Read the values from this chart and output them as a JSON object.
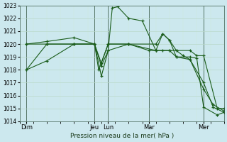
{
  "xlabel": "Pression niveau de la mer( hPa )",
  "ylim": [
    1014,
    1023
  ],
  "yticks": [
    1014,
    1015,
    1016,
    1017,
    1018,
    1019,
    1020,
    1021,
    1022,
    1023
  ],
  "bg_color": "#cce8ee",
  "line_color": "#1a5c1a",
  "grid_major_color": "#b8d8c8",
  "grid_minor_color": "#d0e8d8",
  "xtick_labels": [
    "Dim",
    "Jeu",
    "Lun",
    "Mar",
    "Mer"
  ],
  "xtick_positions": [
    0,
    5,
    6,
    9,
    13
  ],
  "xlim": [
    -0.5,
    14.5
  ],
  "series": [
    {
      "x": [
        0,
        1.5,
        3.5,
        5,
        5.5,
        6,
        6.3,
        6.7,
        7.5,
        8.5,
        9.5,
        10,
        10.5,
        11,
        12,
        13,
        13.7,
        14.5
      ],
      "y": [
        1018.0,
        1018.7,
        1020.0,
        1020.0,
        1017.5,
        1019.5,
        1022.8,
        1022.9,
        1022.0,
        1021.8,
        1019.5,
        1020.8,
        1020.3,
        1019.0,
        1018.8,
        1017.0,
        1015.1,
        1014.7
      ]
    },
    {
      "x": [
        0,
        1.5,
        3.5,
        5,
        5.5,
        6,
        7.5,
        9.5,
        10,
        10.5,
        11,
        12,
        12.5,
        13,
        14,
        14.5
      ],
      "y": [
        1020.0,
        1020.0,
        1020.0,
        1020.0,
        1018.3,
        1019.5,
        1020.0,
        1019.5,
        1019.5,
        1019.5,
        1019.5,
        1019.5,
        1019.1,
        1019.1,
        1015.0,
        1015.0
      ]
    },
    {
      "x": [
        0,
        1.5,
        3.5,
        5,
        5.5,
        6,
        7.5,
        9.5,
        10,
        10.5,
        11,
        11.5,
        12,
        13,
        13.7,
        14.5
      ],
      "y": [
        1020.0,
        1020.2,
        1020.5,
        1020.0,
        1018.5,
        1020.0,
        1020.0,
        1020.0,
        1020.8,
        1020.3,
        1019.5,
        1019.1,
        1018.8,
        1016.5,
        1015.3,
        1014.8
      ]
    },
    {
      "x": [
        0,
        1.5,
        3.5,
        5,
        5.3,
        6,
        7.5,
        9,
        9.5,
        10.5,
        11,
        12,
        12.5,
        13,
        14,
        14.5
      ],
      "y": [
        1018.0,
        1020.0,
        1020.0,
        1020.0,
        1018.0,
        1020.0,
        1020.0,
        1019.5,
        1019.5,
        1019.5,
        1019.0,
        1019.0,
        1018.9,
        1015.1,
        1014.5,
        1014.7
      ]
    }
  ]
}
